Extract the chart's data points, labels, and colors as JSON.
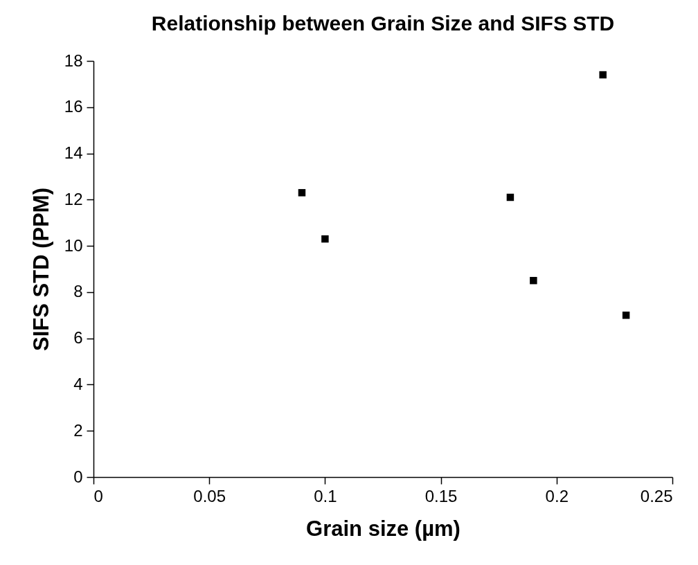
{
  "chart_data": {
    "type": "scatter",
    "title": "Relationship between Grain Size and SIFS STD",
    "xlabel": "Grain size (µm)",
    "ylabel": "SIFS STD (PPM)",
    "x": [
      0.09,
      0.1,
      0.18,
      0.19,
      0.22,
      0.23
    ],
    "series": [
      {
        "color": "#000000",
        "values": [
          12.3,
          10.3,
          12.1,
          8.5,
          17.4,
          7.0
        ]
      }
    ],
    "marker": "square",
    "grid": false,
    "xlim": [
      0,
      0.25
    ],
    "xticks": [
      0,
      0.05,
      0.1,
      0.15,
      0.2,
      0.25
    ],
    "ylim": [
      0,
      18
    ],
    "yticks": [
      0,
      2,
      4,
      6,
      8,
      10,
      12,
      14,
      16,
      18
    ]
  }
}
